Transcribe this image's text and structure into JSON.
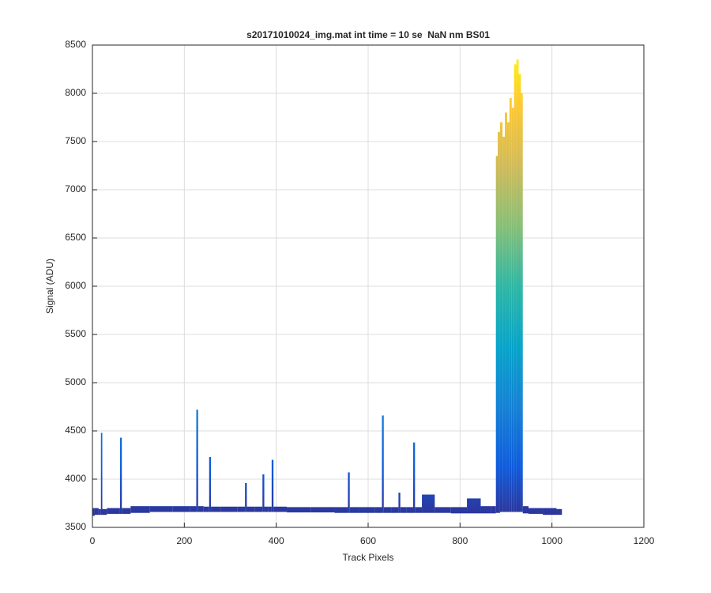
{
  "chart_data": {
    "type": "band",
    "title": "s20171010024_img.mat int time = 10 se  NaN nm BS01",
    "x_label": "Track Pixels",
    "y_label": "Signal (ADU)",
    "x": [
      0,
      10,
      17,
      20,
      23,
      40,
      58,
      62,
      66,
      100,
      150,
      200,
      224,
      228,
      232,
      252,
      256,
      260,
      300,
      330,
      334,
      338,
      368,
      372,
      376,
      388,
      392,
      396,
      450,
      500,
      554,
      558,
      562,
      600,
      628,
      632,
      636,
      664,
      668,
      672,
      696,
      700,
      704,
      730,
      760,
      800,
      830,
      860,
      876,
      880,
      884,
      890,
      895,
      900,
      905,
      910,
      915,
      920,
      925,
      930,
      935,
      938,
      960,
      1000,
      1020
    ],
    "values": [
      3700,
      3700,
      3690,
      4480,
      3690,
      3700,
      3700,
      4430,
      3700,
      3720,
      3720,
      3720,
      3720,
      4720,
      3720,
      3715,
      4230,
      3715,
      3715,
      3715,
      3960,
      3715,
      3715,
      4050,
      3715,
      3715,
      4200,
      3715,
      3710,
      3710,
      3710,
      4070,
      3710,
      3710,
      3710,
      4660,
      3710,
      3710,
      3860,
      3710,
      3710,
      4380,
      3710,
      3840,
      3710,
      3710,
      3800,
      3720,
      3720,
      7350,
      7600,
      7700,
      7550,
      7800,
      7700,
      7950,
      7850,
      8300,
      8350,
      8200,
      8000,
      3720,
      3700,
      3700,
      3690
    ],
    "lower": [
      3620,
      3630,
      3630,
      3630,
      3630,
      3640,
      3640,
      3640,
      3640,
      3650,
      3660,
      3660,
      3660,
      3660,
      3660,
      3660,
      3660,
      3660,
      3660,
      3660,
      3660,
      3660,
      3660,
      3660,
      3660,
      3660,
      3660,
      3660,
      3655,
      3655,
      3650,
      3650,
      3650,
      3650,
      3650,
      3650,
      3650,
      3650,
      3650,
      3650,
      3650,
      3650,
      3650,
      3650,
      3650,
      3645,
      3645,
      3645,
      3645,
      3650,
      3650,
      3660,
      3660,
      3660,
      3660,
      3660,
      3660,
      3660,
      3660,
      3660,
      3660,
      3645,
      3640,
      3630,
      3630
    ],
    "colormap": [
      "#352a87",
      "#0f5cdd",
      "#1481d6",
      "#06a4ca",
      "#2eb7a4",
      "#87bf77",
      "#d1bb59",
      "#fec832",
      "#f9fb0e"
    ],
    "xlim": [
      0,
      1200
    ],
    "xticks": [
      0,
      200,
      400,
      600,
      800,
      1000,
      1200
    ],
    "ylim": [
      3500,
      8500
    ],
    "yticks": [
      3500,
      4000,
      4500,
      5000,
      5500,
      6000,
      6500,
      7000,
      7500,
      8000,
      8500
    ],
    "grid": true
  }
}
